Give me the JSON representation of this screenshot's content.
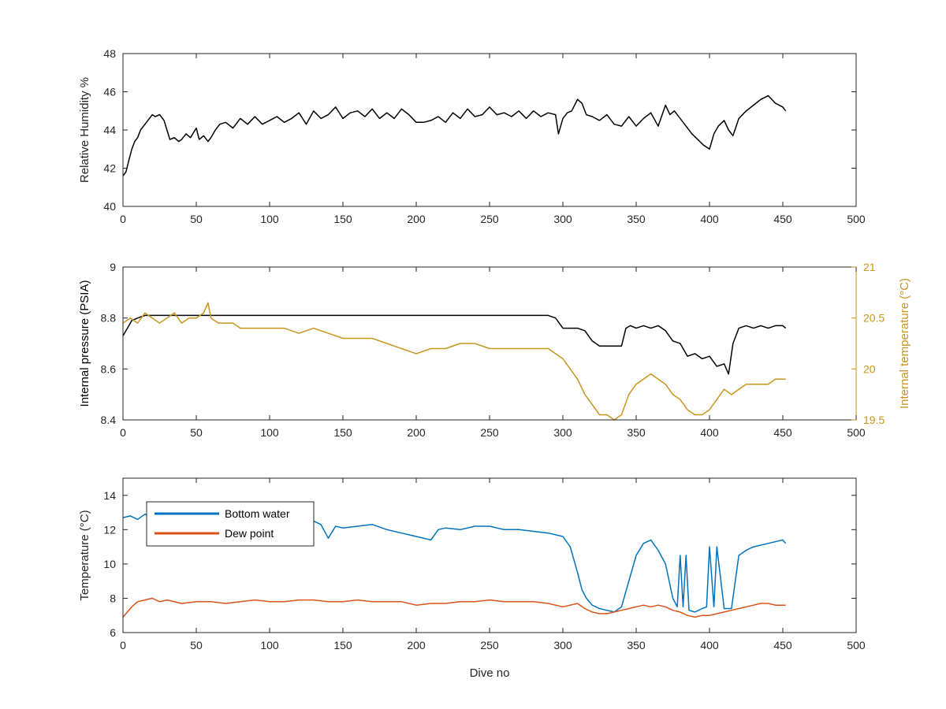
{
  "figure": {
    "x_axis_label": "Dive no"
  },
  "chart_data": [
    {
      "type": "line",
      "ylabel": "Relative Humidity %",
      "xlabel": "",
      "xlim": [
        0,
        500
      ],
      "ylim": [
        40,
        48
      ],
      "xticks": [
        0,
        50,
        100,
        150,
        200,
        250,
        300,
        350,
        400,
        450,
        500
      ],
      "yticks": [
        40,
        42,
        44,
        46,
        48
      ],
      "grid": false,
      "series": [
        {
          "color": "#000000",
          "x": [
            0,
            2,
            4,
            6,
            8,
            10,
            12,
            15,
            18,
            20,
            22,
            25,
            28,
            30,
            32,
            35,
            38,
            40,
            43,
            46,
            50,
            52,
            55,
            58,
            60,
            63,
            66,
            70,
            75,
            80,
            85,
            90,
            95,
            100,
            105,
            110,
            115,
            120,
            125,
            130,
            135,
            140,
            145,
            150,
            155,
            160,
            165,
            170,
            175,
            180,
            185,
            190,
            195,
            200,
            205,
            210,
            215,
            220,
            225,
            230,
            235,
            240,
            245,
            250,
            255,
            260,
            265,
            270,
            275,
            280,
            285,
            290,
            295,
            297,
            300,
            303,
            306,
            310,
            313,
            316,
            320,
            325,
            330,
            335,
            340,
            345,
            350,
            355,
            360,
            365,
            370,
            373,
            376,
            380,
            384,
            388,
            392,
            396,
            400,
            403,
            406,
            410,
            413,
            416,
            420,
            425,
            430,
            435,
            440,
            445,
            450,
            452
          ],
          "values": [
            41.6,
            41.8,
            42.4,
            43.0,
            43.4,
            43.6,
            44.0,
            44.3,
            44.6,
            44.8,
            44.7,
            44.8,
            44.5,
            44.0,
            43.5,
            43.6,
            43.4,
            43.5,
            43.8,
            43.6,
            44.1,
            43.5,
            43.7,
            43.4,
            43.6,
            44.0,
            44.3,
            44.4,
            44.1,
            44.6,
            44.3,
            44.7,
            44.3,
            44.5,
            44.7,
            44.4,
            44.6,
            44.9,
            44.3,
            45.0,
            44.6,
            44.8,
            45.2,
            44.6,
            44.9,
            45.0,
            44.7,
            45.1,
            44.6,
            44.9,
            44.6,
            45.1,
            44.8,
            44.4,
            44.4,
            44.5,
            44.7,
            44.4,
            44.9,
            44.6,
            45.1,
            44.7,
            44.8,
            45.2,
            44.8,
            44.9,
            44.7,
            45.0,
            44.6,
            45.0,
            44.7,
            44.9,
            44.8,
            43.8,
            44.6,
            44.9,
            45.0,
            45.6,
            45.4,
            44.8,
            44.7,
            44.5,
            44.8,
            44.3,
            44.2,
            44.7,
            44.2,
            44.6,
            44.9,
            44.2,
            45.3,
            44.8,
            45.0,
            44.6,
            44.2,
            43.8,
            43.5,
            43.2,
            43.0,
            43.8,
            44.2,
            44.5,
            44.0,
            43.7,
            44.6,
            45.0,
            45.3,
            45.6,
            45.8,
            45.4,
            45.2,
            45.0
          ]
        }
      ]
    },
    {
      "type": "line",
      "ylabel": "Internal pressure (PSIA)",
      "y2label": "Internal temperature (°C)",
      "xlabel": "",
      "xlim": [
        0,
        500
      ],
      "ylim": [
        8.4,
        9
      ],
      "yticks": [
        8.4,
        8.6,
        8.8,
        9
      ],
      "y2lim": [
        19.5,
        21
      ],
      "y2ticks": [
        19.5,
        20,
        20.5,
        21
      ],
      "xticks": [
        0,
        50,
        100,
        150,
        200,
        250,
        300,
        350,
        400,
        450,
        500
      ],
      "grid": false,
      "series": [
        {
          "axis": "left",
          "color": "#000000",
          "x": [
            0,
            3,
            6,
            10,
            15,
            20,
            30,
            40,
            50,
            60,
            70,
            80,
            90,
            100,
            110,
            120,
            130,
            140,
            150,
            160,
            170,
            180,
            190,
            200,
            210,
            220,
            230,
            240,
            250,
            260,
            270,
            280,
            290,
            295,
            300,
            305,
            310,
            315,
            320,
            325,
            330,
            335,
            340,
            343,
            346,
            350,
            355,
            360,
            365,
            370,
            375,
            380,
            385,
            390,
            395,
            400,
            405,
            410,
            413,
            416,
            420,
            425,
            430,
            435,
            440,
            445,
            450,
            452
          ],
          "values": [
            8.73,
            8.76,
            8.79,
            8.8,
            8.81,
            8.81,
            8.81,
            8.81,
            8.81,
            8.81,
            8.81,
            8.81,
            8.81,
            8.81,
            8.81,
            8.81,
            8.81,
            8.81,
            8.81,
            8.81,
            8.81,
            8.81,
            8.81,
            8.81,
            8.81,
            8.81,
            8.81,
            8.81,
            8.81,
            8.81,
            8.81,
            8.81,
            8.81,
            8.8,
            8.76,
            8.76,
            8.76,
            8.75,
            8.71,
            8.69,
            8.69,
            8.69,
            8.69,
            8.76,
            8.77,
            8.76,
            8.77,
            8.76,
            8.77,
            8.75,
            8.71,
            8.7,
            8.65,
            8.66,
            8.64,
            8.65,
            8.61,
            8.62,
            8.58,
            8.7,
            8.76,
            8.77,
            8.76,
            8.77,
            8.76,
            8.77,
            8.77,
            8.76
          ]
        },
        {
          "axis": "right",
          "color": "#c8961e",
          "x": [
            0,
            5,
            10,
            15,
            20,
            25,
            30,
            35,
            40,
            45,
            50,
            55,
            58,
            60,
            65,
            70,
            75,
            80,
            90,
            100,
            110,
            120,
            130,
            140,
            150,
            160,
            170,
            180,
            190,
            200,
            210,
            220,
            230,
            240,
            250,
            260,
            270,
            280,
            290,
            295,
            300,
            305,
            310,
            315,
            320,
            325,
            330,
            335,
            340,
            345,
            350,
            355,
            360,
            365,
            370,
            375,
            380,
            385,
            390,
            395,
            400,
            405,
            410,
            415,
            420,
            425,
            430,
            435,
            440,
            445,
            450,
            452
          ],
          "values": [
            20.45,
            20.5,
            20.45,
            20.55,
            20.5,
            20.45,
            20.5,
            20.55,
            20.45,
            20.5,
            20.5,
            20.55,
            20.65,
            20.5,
            20.45,
            20.45,
            20.45,
            20.4,
            20.4,
            20.4,
            20.4,
            20.35,
            20.4,
            20.35,
            20.3,
            20.3,
            20.3,
            20.25,
            20.2,
            20.15,
            20.2,
            20.2,
            20.25,
            20.25,
            20.2,
            20.2,
            20.2,
            20.2,
            20.2,
            20.15,
            20.1,
            20.0,
            19.9,
            19.75,
            19.65,
            19.55,
            19.55,
            19.5,
            19.55,
            19.75,
            19.85,
            19.9,
            19.95,
            19.9,
            19.85,
            19.75,
            19.7,
            19.6,
            19.55,
            19.55,
            19.6,
            19.7,
            19.8,
            19.75,
            19.8,
            19.85,
            19.85,
            19.85,
            19.85,
            19.9,
            19.9,
            19.9
          ]
        }
      ]
    },
    {
      "type": "line",
      "ylabel": "Temperature (°C)",
      "xlabel": "Dive no",
      "xlim": [
        0,
        500
      ],
      "ylim": [
        6,
        15
      ],
      "xticks": [
        0,
        50,
        100,
        150,
        200,
        250,
        300,
        350,
        400,
        450,
        500
      ],
      "yticks": [
        6,
        8,
        10,
        12,
        14
      ],
      "grid": false,
      "legend": "top-left",
      "series": [
        {
          "name": "Bottom water",
          "color": "#0072bd",
          "x": [
            0,
            5,
            10,
            15,
            20,
            30,
            40,
            50,
            60,
            70,
            80,
            90,
            100,
            110,
            120,
            130,
            135,
            140,
            145,
            150,
            160,
            170,
            180,
            190,
            200,
            205,
            210,
            215,
            220,
            230,
            240,
            250,
            260,
            270,
            280,
            290,
            300,
            305,
            310,
            313,
            316,
            318,
            320,
            325,
            330,
            335,
            340,
            345,
            350,
            355,
            360,
            365,
            370,
            375,
            378,
            380,
            382,
            384,
            386,
            390,
            395,
            398,
            400,
            403,
            405,
            410,
            415,
            420,
            425,
            430,
            440,
            450,
            452
          ],
          "values": [
            12.7,
            12.8,
            12.6,
            12.9,
            12.7,
            12.6,
            12.7,
            12.6,
            12.8,
            12.5,
            12.6,
            12.7,
            12.6,
            12.5,
            12.6,
            12.5,
            12.3,
            11.5,
            12.2,
            12.1,
            12.2,
            12.3,
            12.0,
            11.8,
            11.6,
            11.5,
            11.4,
            12.0,
            12.1,
            12.0,
            12.2,
            12.2,
            12.0,
            12.0,
            11.9,
            11.8,
            11.6,
            11.0,
            9.5,
            8.5,
            8.0,
            7.8,
            7.6,
            7.4,
            7.3,
            7.2,
            7.5,
            9.0,
            10.5,
            11.2,
            11.4,
            10.8,
            10.0,
            8.0,
            7.5,
            10.5,
            7.5,
            10.5,
            7.3,
            7.2,
            7.4,
            7.5,
            11.0,
            7.5,
            11.0,
            7.4,
            7.4,
            10.5,
            10.8,
            11.0,
            11.2,
            11.4,
            11.2
          ]
        },
        {
          "name": "Dew point",
          "color": "#d95319",
          "x": [
            0,
            3,
            6,
            10,
            15,
            20,
            25,
            30,
            40,
            50,
            60,
            70,
            80,
            90,
            100,
            110,
            120,
            130,
            140,
            150,
            160,
            170,
            180,
            190,
            200,
            210,
            220,
            230,
            240,
            250,
            260,
            270,
            280,
            290,
            300,
            305,
            310,
            315,
            320,
            325,
            330,
            335,
            340,
            345,
            350,
            355,
            360,
            365,
            370,
            375,
            380,
            385,
            390,
            395,
            400,
            405,
            410,
            415,
            420,
            425,
            430,
            435,
            440,
            445,
            450,
            452
          ],
          "values": [
            6.9,
            7.2,
            7.5,
            7.8,
            7.9,
            8.0,
            7.8,
            7.9,
            7.7,
            7.8,
            7.8,
            7.7,
            7.8,
            7.9,
            7.8,
            7.8,
            7.9,
            7.9,
            7.8,
            7.8,
            7.9,
            7.8,
            7.8,
            7.8,
            7.6,
            7.7,
            7.7,
            7.8,
            7.8,
            7.9,
            7.8,
            7.8,
            7.8,
            7.7,
            7.5,
            7.6,
            7.7,
            7.4,
            7.2,
            7.1,
            7.1,
            7.2,
            7.3,
            7.4,
            7.5,
            7.6,
            7.5,
            7.6,
            7.5,
            7.3,
            7.2,
            7.0,
            6.9,
            7.0,
            7.0,
            7.1,
            7.2,
            7.3,
            7.4,
            7.5,
            7.6,
            7.7,
            7.7,
            7.6,
            7.6,
            7.6
          ]
        }
      ]
    }
  ]
}
